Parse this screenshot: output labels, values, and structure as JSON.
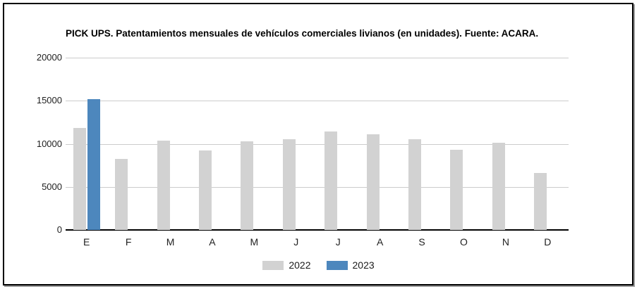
{
  "title": "PICK UPS. Patentamientos mensuales de vehículos comerciales livianos (en unidades). Fuente: ACARA.",
  "colors": {
    "series_2022": "#d2d2d2",
    "series_2023": "#4d87bd",
    "gridline": "#cccccc",
    "axis": "#000000",
    "text": "#212121",
    "frame_border": "#000000"
  },
  "y_axis": {
    "ticks": [
      20000,
      15000,
      10000,
      5000,
      0
    ]
  },
  "legend": [
    {
      "label": "2022",
      "color": "#d2d2d2"
    },
    {
      "label": "2023",
      "color": "#4d87bd"
    }
  ],
  "chart_data": {
    "type": "bar",
    "title": "PICK UPS. Patentamientos mensuales de vehículos comerciales livianos (en unidades). Fuente: ACARA.",
    "categories": [
      "E",
      "F",
      "M",
      "A",
      "M",
      "J",
      "J",
      "A",
      "S",
      "O",
      "N",
      "D"
    ],
    "series": [
      {
        "name": "2022",
        "color": "#d2d2d2",
        "values": [
          11800,
          8250,
          10350,
          9200,
          10300,
          10550,
          11400,
          11100,
          10500,
          9300,
          10150,
          6650
        ]
      },
      {
        "name": "2023",
        "color": "#4d87bd",
        "values": [
          15200,
          null,
          null,
          null,
          null,
          null,
          null,
          null,
          null,
          null,
          null,
          null
        ]
      }
    ],
    "xlabel": "",
    "ylabel": "",
    "ylim": [
      0,
      20000
    ],
    "y_tick_step": 5000,
    "grid": true,
    "legend_position": "bottom-center"
  }
}
